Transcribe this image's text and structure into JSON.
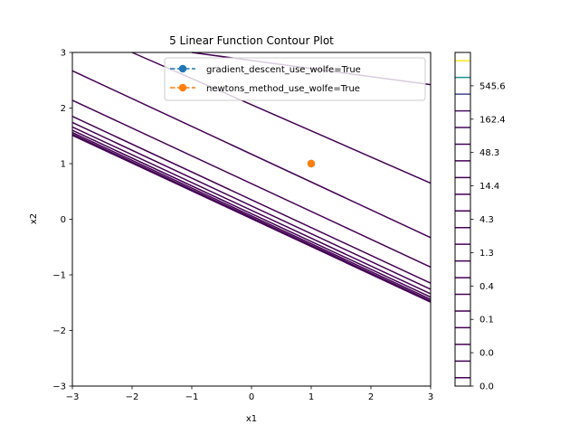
{
  "chart_data": {
    "type": "line",
    "title": "5 Linear Function Contour Plot",
    "xlabel": "x1",
    "ylabel": "x2",
    "xlim": [
      -3,
      3
    ],
    "ylim": [
      -3,
      3
    ],
    "xticks": [
      -3,
      -2,
      -1,
      0,
      1,
      2,
      3
    ],
    "yticks": [
      -3,
      -2,
      -1,
      0,
      1,
      2,
      3
    ],
    "xtick_labels": [
      "−3",
      "−2",
      "−1",
      "0",
      "1",
      "2",
      "3"
    ],
    "ytick_labels": [
      "−3",
      "−2",
      "−1",
      "0",
      "1",
      "2",
      "3"
    ],
    "grid": false,
    "legend_position": "top-right",
    "contour_lines": [
      {
        "x": [
          -3,
          3
        ],
        "y": [
          1.51,
          -1.49
        ],
        "color": "#440154"
      },
      {
        "x": [
          -3,
          3
        ],
        "y": [
          1.53,
          -1.47
        ],
        "color": "#440154"
      },
      {
        "x": [
          -3,
          3
        ],
        "y": [
          1.56,
          -1.44
        ],
        "color": "#440154"
      },
      {
        "x": [
          -3,
          3
        ],
        "y": [
          1.6,
          -1.4
        ],
        "color": "#440154"
      },
      {
        "x": [
          -3,
          3
        ],
        "y": [
          1.66,
          -1.34
        ],
        "color": "#440154"
      },
      {
        "x": [
          -3,
          3
        ],
        "y": [
          1.74,
          -1.26
        ],
        "color": "#440154"
      },
      {
        "x": [
          -3,
          3
        ],
        "y": [
          1.85,
          -1.15
        ],
        "color": "#440154"
      },
      {
        "x": [
          -3,
          3
        ],
        "y": [
          2.14,
          -0.86
        ],
        "color": "#440154"
      },
      {
        "x": [
          -3,
          3
        ],
        "y": [
          2.67,
          -0.33
        ],
        "color": "#440154"
      },
      {
        "x": [
          -2.0,
          3
        ],
        "y": [
          3.0,
          0.65
        ],
        "color": "#440154"
      },
      {
        "x": [
          -1.0,
          3
        ],
        "y": [
          3.0,
          2.42
        ],
        "color": "#440154"
      }
    ],
    "series": [
      {
        "name": "gradient_descent_use_wolfe=True",
        "x": [
          1
        ],
        "y": [
          1
        ],
        "color": "#1f77b4"
      },
      {
        "name": "newtons_method_use_wolfe=True",
        "x": [
          1
        ],
        "y": [
          1
        ],
        "color": "#ff7f0e"
      }
    ],
    "colorbar": {
      "tick_labels": [
        "0.0",
        "0.0",
        "0.1",
        "0.4",
        "1.3",
        "4.3",
        "14.4",
        "48.3",
        "162.4",
        "545.6"
      ],
      "level_colors": [
        "#440154",
        "#440154",
        "#440154",
        "#440154",
        "#440154",
        "#440154",
        "#440154",
        "#440154",
        "#440154",
        "#440154",
        "#440154",
        "#440154",
        "#440154",
        "#440154",
        "#450559",
        "#46085c",
        "#471063",
        "#3e4989",
        "#21918c",
        "#fde725"
      ]
    }
  }
}
